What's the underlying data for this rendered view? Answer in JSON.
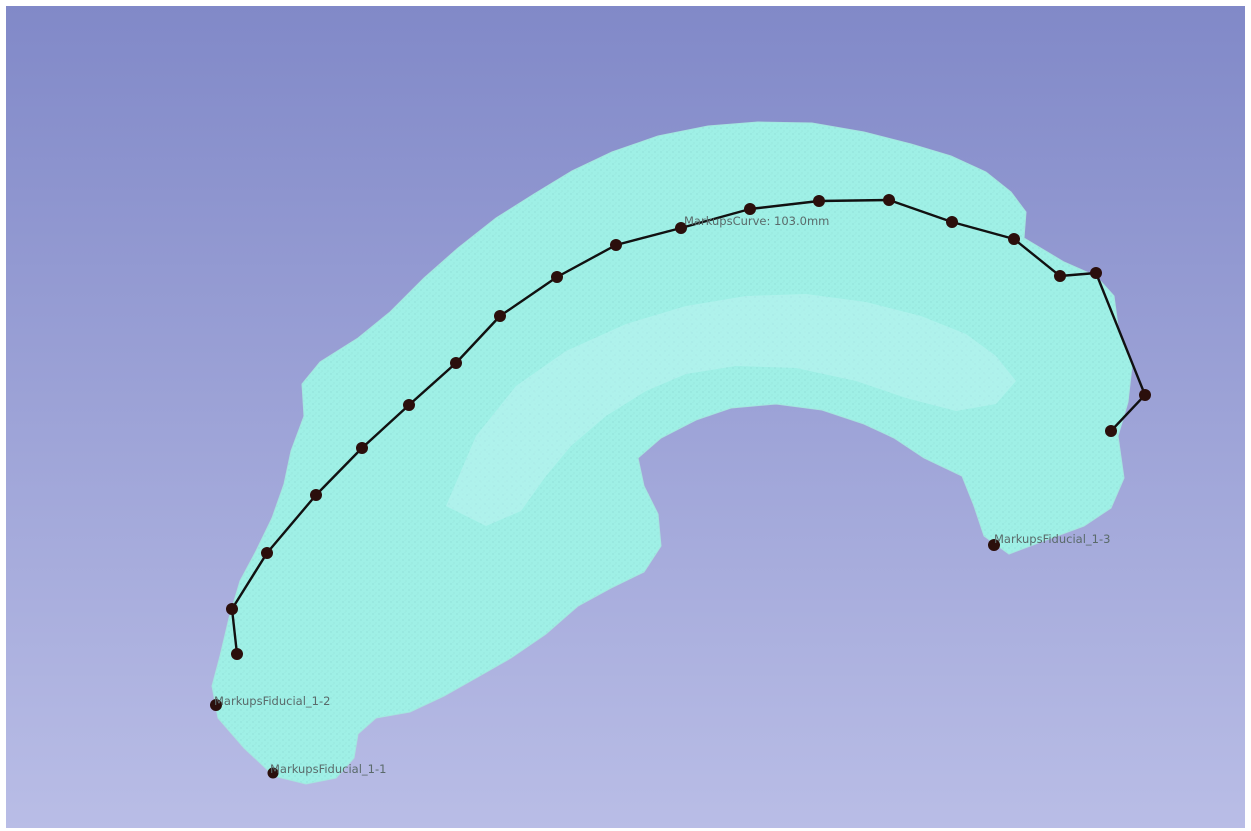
{
  "viewport": {
    "background_top": "#8189c8",
    "background_bottom": "#b9bde6",
    "model_color": "#9ff0e6",
    "marker_color": "#2b0f0c",
    "curve_color": "#111111"
  },
  "markups": {
    "curve_label": "MarkupsCurve: 103.0mm",
    "fiducial_1": "MarkupsFiducial_1-1",
    "fiducial_2": "MarkupsFiducial_1-2",
    "fiducial_3": "MarkupsFiducial_1-3"
  }
}
